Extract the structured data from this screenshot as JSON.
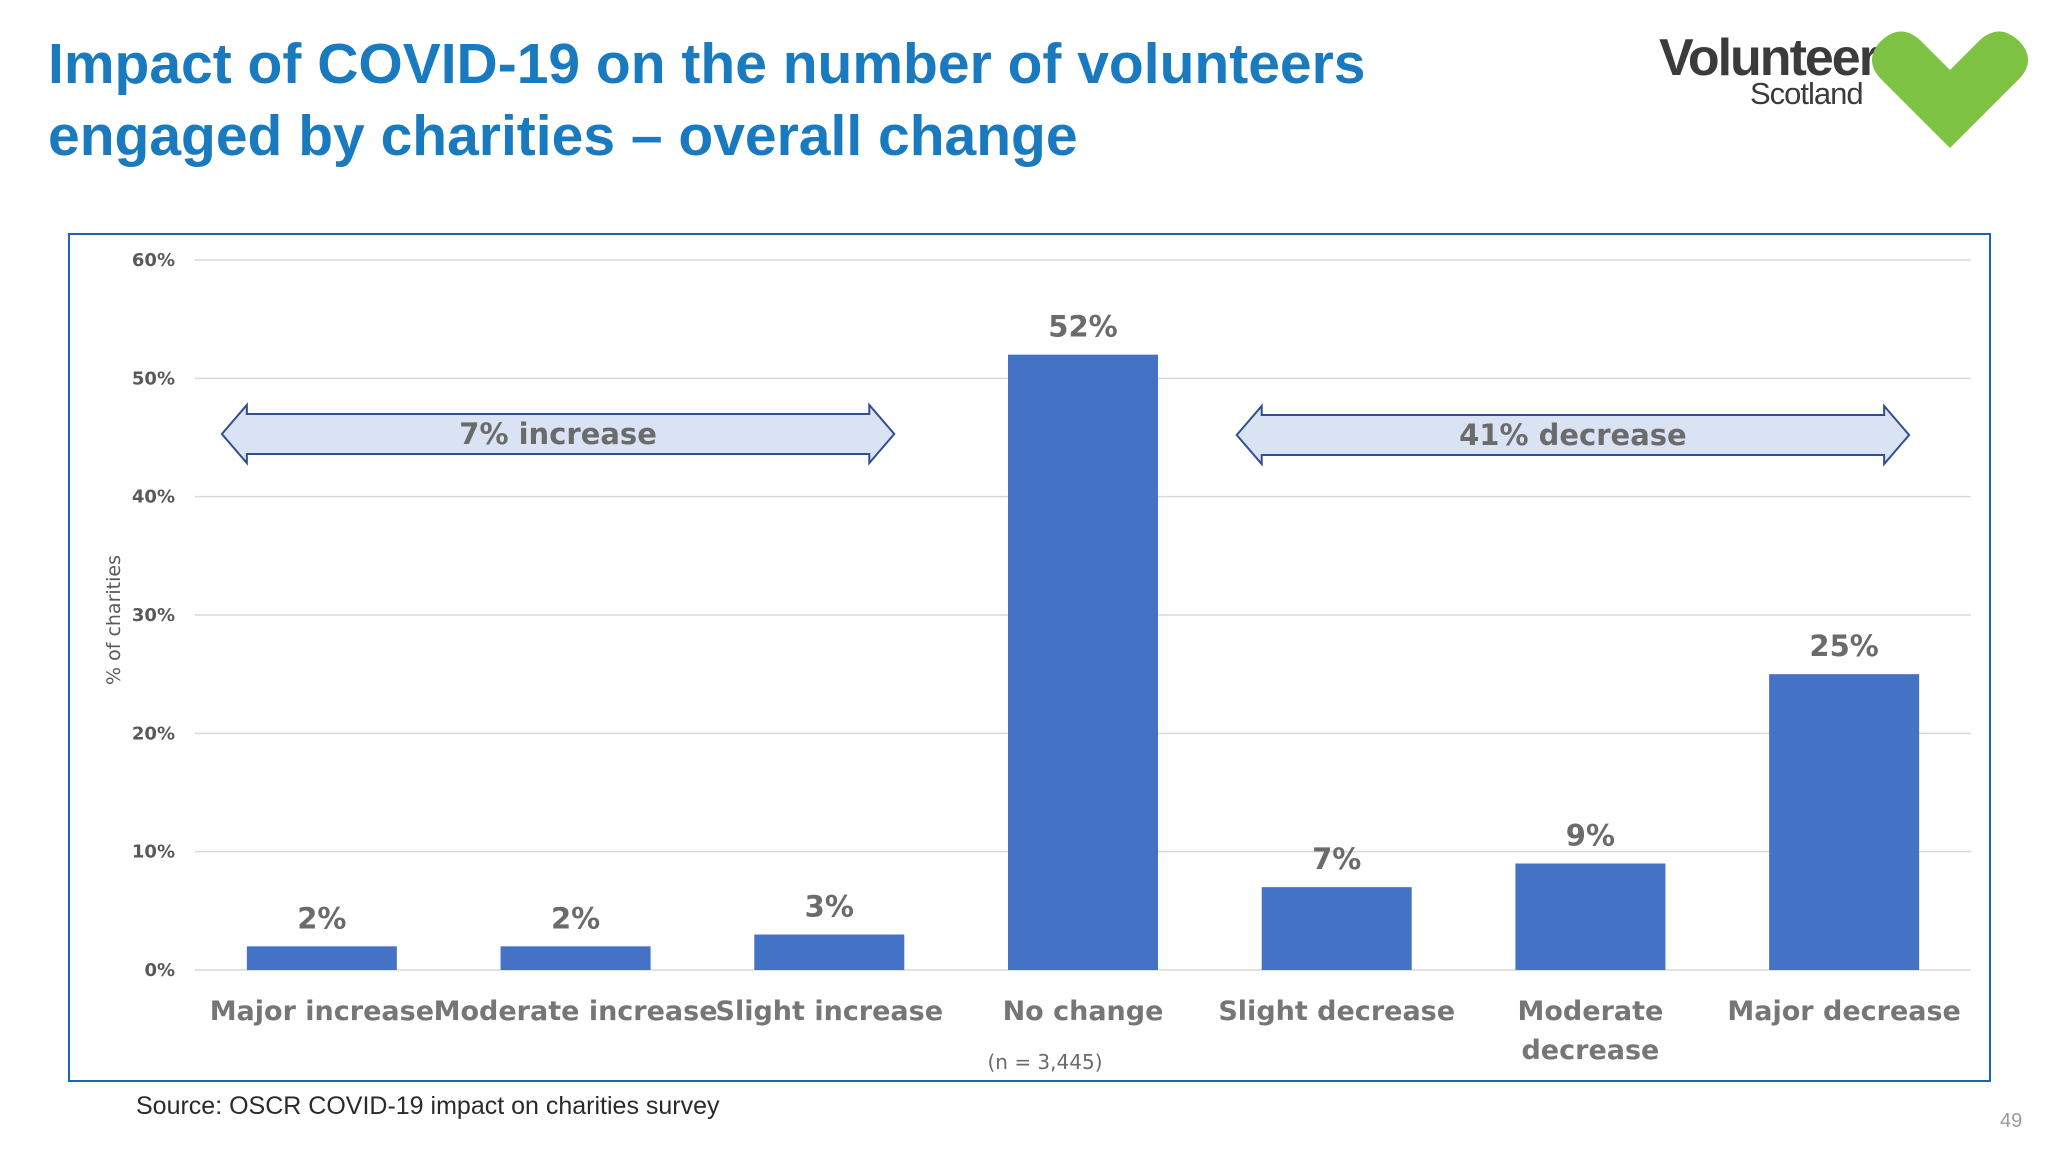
{
  "title": {
    "line1": "Impact of COVID-19 on the number of volunteers",
    "line2": "engaged by charities – overall change"
  },
  "logo": {
    "word": "Volunteer",
    "sub": "Scotland",
    "heart_color": "#7dc242"
  },
  "source": "Source: OSCR COVID-19 impact on charities survey",
  "page_number": "49",
  "colors": {
    "title": "#1a7abf",
    "bar": "#4472c4",
    "frame": "#1f63b3",
    "arrow_fill": "#dae3f3",
    "arrow_stroke": "#2f4f8f"
  },
  "chart_data": {
    "type": "bar",
    "categories": [
      [
        "Major increase"
      ],
      [
        "Moderate increase"
      ],
      [
        "Slight increase"
      ],
      [
        "No change"
      ],
      [
        "Slight decrease"
      ],
      [
        "Moderate",
        "decrease"
      ],
      [
        "Major decrease"
      ]
    ],
    "values": [
      2,
      2,
      3,
      52,
      7,
      9,
      25
    ],
    "value_labels": [
      "2%",
      "2%",
      "3%",
      "52%",
      "7%",
      "9%",
      "25%"
    ],
    "ylabel": "% of charities",
    "ylim": [
      0,
      60
    ],
    "yticks": [
      "0%",
      "10%",
      "20%",
      "30%",
      "40%",
      "50%",
      "60%"
    ],
    "grid": true,
    "note": "(n = 3,445)",
    "annotations": [
      {
        "label": "7% increase",
        "from_category": 0,
        "to_category": 2
      },
      {
        "label": "41% decrease",
        "from_category": 4,
        "to_category": 6
      }
    ]
  }
}
